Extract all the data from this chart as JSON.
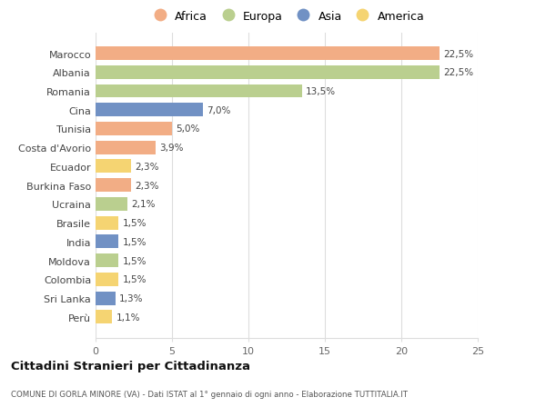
{
  "categories": [
    "Marocco",
    "Albania",
    "Romania",
    "Cina",
    "Tunisia",
    "Costa d'Avorio",
    "Ecuador",
    "Burkina Faso",
    "Ucraina",
    "Brasile",
    "India",
    "Moldova",
    "Colombia",
    "Sri Lanka",
    "Perù"
  ],
  "values": [
    22.5,
    22.5,
    13.5,
    7.0,
    5.0,
    3.9,
    2.3,
    2.3,
    2.1,
    1.5,
    1.5,
    1.5,
    1.5,
    1.3,
    1.1
  ],
  "labels": [
    "22,5%",
    "22,5%",
    "13,5%",
    "7,0%",
    "5,0%",
    "3,9%",
    "2,3%",
    "2,3%",
    "2,1%",
    "1,5%",
    "1,5%",
    "1,5%",
    "1,5%",
    "1,3%",
    "1,1%"
  ],
  "continents": [
    "Africa",
    "Europa",
    "Europa",
    "Asia",
    "Africa",
    "Africa",
    "America",
    "Africa",
    "Europa",
    "America",
    "Asia",
    "Europa",
    "America",
    "Asia",
    "America"
  ],
  "continent_colors": {
    "Africa": "#F2AD85",
    "Europa": "#BACF8F",
    "Asia": "#7191C4",
    "America": "#F5D472"
  },
  "legend_order": [
    "Africa",
    "Europa",
    "Asia",
    "America"
  ],
  "title": "Cittadini Stranieri per Cittadinanza",
  "subtitle": "COMUNE DI GORLA MINORE (VA) - Dati ISTAT al 1° gennaio di ogni anno - Elaborazione TUTTITALIA.IT",
  "xlim": [
    0,
    25
  ],
  "xticks": [
    0,
    5,
    10,
    15,
    20,
    25
  ],
  "background_color": "#ffffff",
  "grid_color": "#dddddd"
}
